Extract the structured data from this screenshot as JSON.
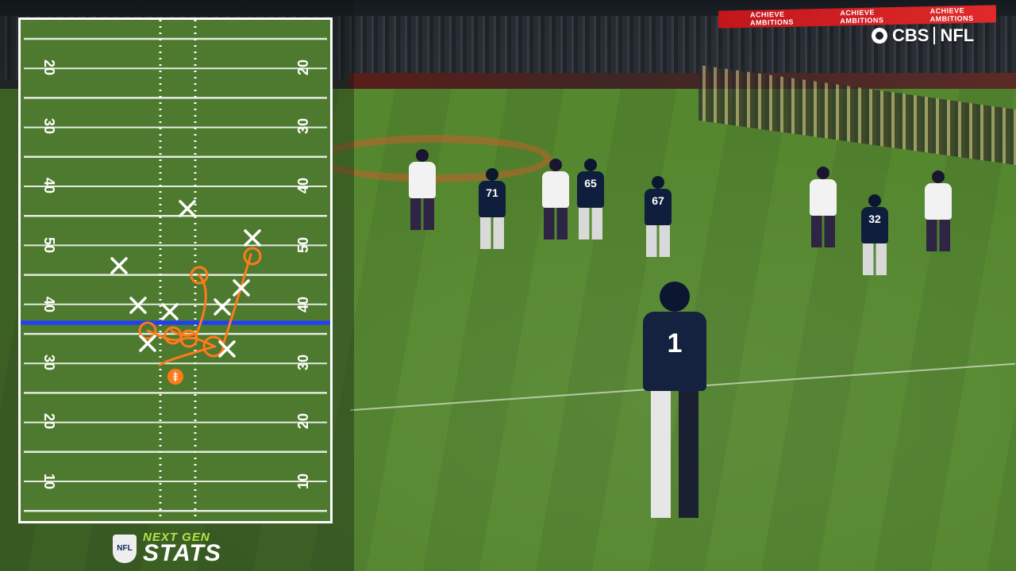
{
  "broadcast": {
    "network": "CBS",
    "league": "NFL",
    "ribbon_board": [
      "ACHIEVE AMBITIONS",
      "ACHIEVE AMBITIONS",
      "ACHIEVE AMBITIONS"
    ],
    "field_logo_icon": "bears-c-logo"
  },
  "players": {
    "quarterback_number": "1",
    "offense_numbers": [
      "71",
      "65",
      "67"
    ],
    "defense_numbers": [
      "32"
    ]
  },
  "ngs_panel": {
    "colors": {
      "line_of_scrimmage": "#1f3cff",
      "route": "#ff7a1a",
      "defender_mark": "#ffffff",
      "field": "#4d7a2e"
    },
    "yard_labels_left": [
      "20",
      "30",
      "40",
      "50",
      "40",
      "30",
      "20",
      "10"
    ],
    "yard_labels_right": [
      "20",
      "30",
      "40",
      "50",
      "40",
      "30",
      "20",
      "10"
    ],
    "ball_icon": "football-icon"
  },
  "logo": {
    "top": "NEXT GEN",
    "bottom": "STATS",
    "shield_label": "NFL"
  }
}
